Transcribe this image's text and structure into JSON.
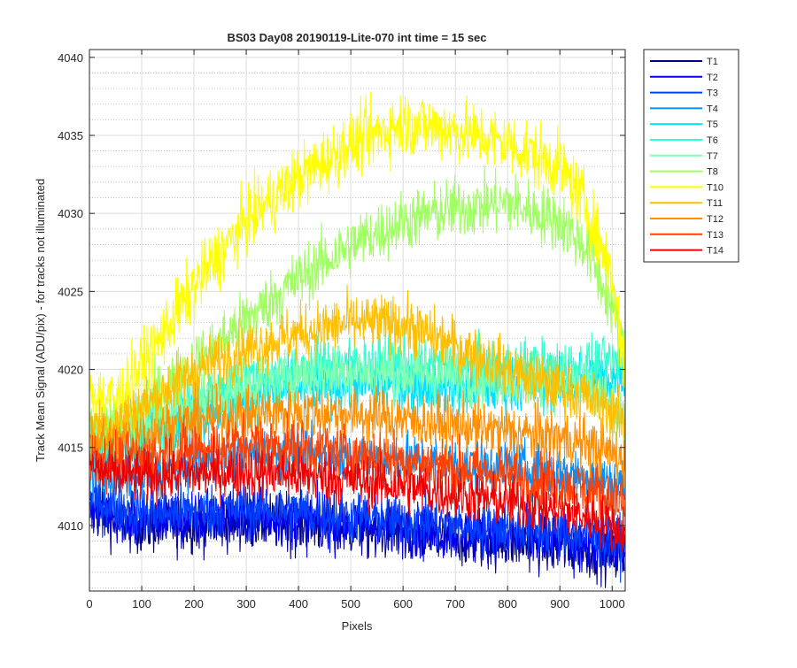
{
  "chart_data": {
    "type": "line",
    "title": "BS03 Day08 20190119-Lite-070 int time = 15 sec",
    "xlabel": "Pixels",
    "ylabel": "Track Mean Signal (ADU/pix) - for tracks not illuminated",
    "xlim": [
      0,
      1025
    ],
    "ylim": [
      4005.8,
      4040.5
    ],
    "x_ticks": [
      0,
      100,
      200,
      300,
      400,
      500,
      600,
      700,
      800,
      900,
      1000
    ],
    "y_ticks": [
      4010,
      4015,
      4020,
      4025,
      4030,
      4035,
      4040
    ],
    "grid": true,
    "minor_grid_y": true,
    "legend_position": "outside-top-right",
    "series": [
      {
        "name": "T1",
        "color": "#00008f",
        "x": [
          0,
          50,
          100,
          200,
          300,
          400,
          500,
          600,
          700,
          800,
          900,
          950,
          1000,
          1025
        ],
        "y": [
          4011.0,
          4010.4,
          4010.0,
          4010.1,
          4010.3,
          4010.1,
          4009.8,
          4009.5,
          4009.2,
          4009.0,
          4008.7,
          4008.5,
          4008.2,
          4008.0
        ],
        "noise": 1.3
      },
      {
        "name": "T2",
        "color": "#0000ef",
        "x": [
          0,
          50,
          100,
          200,
          300,
          400,
          500,
          600,
          700,
          800,
          900,
          950,
          1000,
          1025
        ],
        "y": [
          4011.3,
          4010.7,
          4010.3,
          4010.4,
          4010.6,
          4010.4,
          4010.1,
          4009.8,
          4009.5,
          4009.3,
          4009.0,
          4008.8,
          4008.5,
          4008.3
        ],
        "noise": 1.3
      },
      {
        "name": "T3",
        "color": "#0040ff",
        "x": [
          0,
          50,
          100,
          200,
          300,
          400,
          500,
          600,
          700,
          800,
          900,
          950,
          1000,
          1025
        ],
        "y": [
          4011.8,
          4011.2,
          4010.8,
          4010.9,
          4011.1,
          4010.9,
          4010.6,
          4010.3,
          4010.0,
          4009.8,
          4009.5,
          4009.3,
          4009.0,
          4008.8
        ],
        "noise": 1.2
      },
      {
        "name": "T4",
        "color": "#0090ff",
        "x": [
          0,
          50,
          100,
          200,
          300,
          400,
          500,
          600,
          700,
          800,
          900,
          950,
          1000,
          1025
        ],
        "y": [
          4013.5,
          4013.0,
          4013.0,
          4014.0,
          4014.5,
          4014.6,
          4014.4,
          4014.2,
          4014.0,
          4013.8,
          4013.5,
          4013.2,
          4012.8,
          4012.5
        ],
        "noise": 1.2
      },
      {
        "name": "T5",
        "color": "#00dfff",
        "x": [
          0,
          50,
          100,
          200,
          300,
          400,
          500,
          600,
          700,
          800,
          900,
          950,
          1000,
          1025
        ],
        "y": [
          4015.0,
          4014.8,
          4015.4,
          4017.0,
          4018.2,
          4018.9,
          4019.1,
          4019.0,
          4018.9,
          4019.0,
          4019.1,
          4019.3,
          4019.5,
          4019.6
        ],
        "noise": 1.3
      },
      {
        "name": "T6",
        "color": "#30ffcf",
        "x": [
          0,
          50,
          100,
          200,
          300,
          400,
          500,
          600,
          700,
          800,
          900,
          950,
          1000,
          1025
        ],
        "y": [
          4015.5,
          4015.4,
          4016.2,
          4018.0,
          4019.3,
          4020.0,
          4020.4,
          4020.4,
          4020.2,
          4020.1,
          4020.1,
          4020.2,
          4020.3,
          4020.5
        ],
        "noise": 1.3
      },
      {
        "name": "T7",
        "color": "#80ffaf",
        "x": [
          0,
          50,
          100,
          200,
          300,
          400,
          500,
          600,
          700,
          800,
          900,
          950,
          1000,
          1025
        ],
        "y": [
          4016.0,
          4015.8,
          4016.4,
          4018.0,
          4019.0,
          4019.6,
          4019.8,
          4019.7,
          4019.5,
          4019.4,
          4019.2,
          4018.7,
          4017.5,
          4016.0
        ],
        "noise": 1.3
      },
      {
        "name": "T8",
        "color": "#9fff60",
        "x": [
          0,
          50,
          100,
          200,
          300,
          400,
          500,
          600,
          700,
          800,
          900,
          950,
          1000,
          1025
        ],
        "y": [
          4016.5,
          4016.5,
          4017.5,
          4020.3,
          4023.2,
          4025.8,
          4028.0,
          4029.5,
          4030.3,
          4030.7,
          4029.5,
          4027.8,
          4024.0,
          4020.5
        ],
        "noise": 1.4
      },
      {
        "name": "T10",
        "color": "#ffff00",
        "x": [
          0,
          50,
          100,
          200,
          300,
          400,
          500,
          600,
          700,
          800,
          900,
          950,
          1000,
          1025
        ],
        "y": [
          4018.5,
          4018.0,
          4020.2,
          4025.3,
          4029.5,
          4032.3,
          4034.5,
          4035.8,
          4035.3,
          4034.5,
          4033.0,
          4030.5,
          4026.0,
          4020.0
        ],
        "noise": 1.5
      },
      {
        "name": "T11",
        "color": "#ffbf00",
        "x": [
          0,
          50,
          100,
          200,
          300,
          400,
          500,
          600,
          700,
          800,
          900,
          950,
          1000,
          1025
        ],
        "y": [
          4016.5,
          4016.5,
          4017.6,
          4019.9,
          4021.3,
          4022.3,
          4023.0,
          4022.9,
          4021.5,
          4020.0,
          4018.8,
          4018.2,
          4017.3,
          4016.5
        ],
        "noise": 1.3
      },
      {
        "name": "T12",
        "color": "#ff8f00",
        "x": [
          0,
          50,
          100,
          200,
          300,
          400,
          500,
          600,
          700,
          800,
          900,
          950,
          1000,
          1025
        ],
        "y": [
          4015.5,
          4015.2,
          4015.8,
          4016.7,
          4017.1,
          4017.3,
          4017.1,
          4016.8,
          4016.4,
          4016.0,
          4015.6,
          4015.2,
          4014.6,
          4014.0
        ],
        "noise": 1.3
      },
      {
        "name": "T13",
        "color": "#ff4000",
        "x": [
          0,
          50,
          100,
          200,
          300,
          400,
          500,
          600,
          700,
          800,
          900,
          950,
          1000,
          1025
        ],
        "y": [
          4014.5,
          4014.0,
          4014.3,
          4014.9,
          4015.2,
          4015.0,
          4014.6,
          4014.2,
          4013.7,
          4013.2,
          4012.7,
          4012.3,
          4011.8,
          4011.3
        ],
        "noise": 1.3
      },
      {
        "name": "T14",
        "color": "#ef0000",
        "x": [
          0,
          50,
          100,
          200,
          300,
          400,
          500,
          600,
          700,
          800,
          900,
          950,
          1000,
          1025
        ],
        "y": [
          4013.8,
          4013.2,
          4013.1,
          4013.3,
          4013.4,
          4013.2,
          4012.9,
          4012.5,
          4012.0,
          4011.5,
          4011.0,
          4010.6,
          4010.1,
          4009.6
        ],
        "noise": 1.2
      }
    ]
  }
}
